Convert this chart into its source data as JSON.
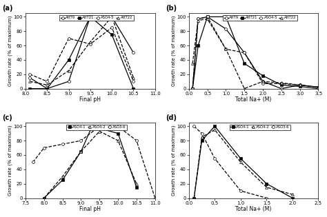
{
  "panel_a": {
    "label": "(a)",
    "xlabel": "Final pH",
    "ylabel": "Growth rate (% of maximum)",
    "xlim": [
      8,
      11
    ],
    "xticks": [
      8,
      8.5,
      9,
      9.5,
      10,
      10.5,
      11
    ],
    "ylim": [
      0,
      105
    ],
    "series": [
      {
        "name": "AHT9",
        "marker": "o",
        "mfc": "white",
        "linestyle": "-",
        "x": [
          8.1,
          8.5,
          9.0,
          9.5,
          10.0,
          10.5
        ],
        "y": [
          15,
          0,
          10,
          100,
          100,
          50
        ]
      },
      {
        "name": "AHT21",
        "marker": "s",
        "mfc": "black",
        "linestyle": "-",
        "x": [
          8.1,
          8.5,
          9.0,
          9.5,
          10.0,
          10.5
        ],
        "y": [
          0,
          0,
          40,
          100,
          75,
          0
        ]
      },
      {
        "name": "ASO4-5",
        "marker": "o",
        "mfc": "white",
        "linestyle": "--",
        "x": [
          8.1,
          8.5,
          9.0,
          9.5,
          10.0,
          10.5
        ],
        "y": [
          20,
          10,
          70,
          62,
          85,
          10
        ]
      },
      {
        "name": "AHT22",
        "marker": "^",
        "mfc": "white",
        "linestyle": "--",
        "x": [
          8.1,
          8.5,
          9.0,
          9.5,
          10.0,
          10.5
        ],
        "y": [
          10,
          5,
          25,
          65,
          100,
          15
        ]
      }
    ]
  },
  "panel_b": {
    "label": "(b)",
    "xlabel": "Total Na+ (M)",
    "ylabel": "Growth rate (% of maximum)",
    "xlim": [
      0,
      3.5
    ],
    "xticks": [
      0,
      0.5,
      1,
      1.5,
      2,
      2.5,
      3,
      3.5
    ],
    "ylim": [
      0,
      105
    ],
    "series": [
      {
        "name": "AHT9",
        "marker": "o",
        "mfc": "white",
        "linestyle": "-",
        "x": [
          0.1,
          0.25,
          0.5,
          1.0,
          1.5,
          2.0,
          2.5,
          3.0,
          3.5
        ],
        "y": [
          0,
          97,
          100,
          83,
          50,
          10,
          0,
          5,
          2
        ]
      },
      {
        "name": "AHT21",
        "marker": "s",
        "mfc": "black",
        "linestyle": "-",
        "x": [
          0.1,
          0.25,
          0.5,
          1.0,
          1.5,
          2.0,
          2.5,
          3.0,
          3.5
        ],
        "y": [
          0,
          60,
          100,
          100,
          35,
          18,
          5,
          3,
          0
        ]
      },
      {
        "name": "ASO4-5",
        "marker": "o",
        "mfc": "white",
        "linestyle": "--",
        "x": [
          0.1,
          0.25,
          0.5,
          1.0,
          1.5,
          2.0,
          2.5,
          3.0,
          3.5
        ],
        "y": [
          0,
          97,
          100,
          55,
          50,
          7,
          7,
          5,
          2
        ]
      },
      {
        "name": "AHT22",
        "marker": "^",
        "mfc": "white",
        "linestyle": "--",
        "x": [
          0.1,
          0.25,
          0.5,
          1.0,
          1.5,
          2.0,
          2.5,
          3.0,
          3.5
        ],
        "y": [
          35,
          95,
          97,
          55,
          0,
          10,
          8,
          5,
          2
        ]
      }
    ]
  },
  "panel_c": {
    "label": "(c)",
    "xlabel": "Final pH",
    "ylabel": "Growth rate (% of maximum)",
    "xlim": [
      7.5,
      11
    ],
    "xticks": [
      7.5,
      8,
      8.5,
      9,
      9.5,
      10,
      10.5,
      11
    ],
    "ylim": [
      0,
      105
    ],
    "series": [
      {
        "name": "ASO4-1",
        "marker": "s",
        "mfc": "black",
        "linestyle": "-",
        "x": [
          8.0,
          8.5,
          9.0,
          9.3,
          10.0,
          10.5
        ],
        "y": [
          0,
          25,
          65,
          100,
          90,
          15
        ]
      },
      {
        "name": "ASO4-2",
        "marker": "^",
        "mfc": "white",
        "linestyle": "--",
        "x": [
          8.0,
          8.5,
          9.0,
          9.5,
          10.0,
          10.5
        ],
        "y": [
          0,
          30,
          65,
          93,
          80,
          20
        ]
      },
      {
        "name": "ASO3-6",
        "marker": "o",
        "mfc": "white",
        "linestyle": "--",
        "x": [
          7.7,
          8.0,
          8.5,
          9.0,
          9.5,
          10.0,
          10.5,
          11.0
        ],
        "y": [
          50,
          70,
          75,
          80,
          100,
          100,
          80,
          0
        ]
      }
    ]
  },
  "panel_d": {
    "label": "(d)",
    "xlabel": "Total Na+ (M)",
    "ylabel": "Growth rate (% of maximum)",
    "xlim": [
      0,
      2.5
    ],
    "xticks": [
      0,
      0.5,
      1.0,
      1.5,
      2.0,
      2.5
    ],
    "ylim": [
      0,
      105
    ],
    "series": [
      {
        "name": "ASO4-1",
        "marker": "s",
        "mfc": "black",
        "linestyle": "-",
        "x": [
          0.1,
          0.25,
          0.5,
          1.0,
          1.5,
          2.0
        ],
        "y": [
          0,
          80,
          100,
          55,
          20,
          0
        ]
      },
      {
        "name": "ASO4-2",
        "marker": "^",
        "mfc": "white",
        "linestyle": "--",
        "x": [
          0.1,
          0.25,
          0.5,
          1.0,
          1.5,
          2.0
        ],
        "y": [
          0,
          85,
          95,
          50,
          15,
          5
        ]
      },
      {
        "name": "ASO3-6",
        "marker": "o",
        "mfc": "white",
        "linestyle": "--",
        "x": [
          0.1,
          0.25,
          0.5,
          1.0,
          1.5
        ],
        "y": [
          100,
          90,
          55,
          10,
          0
        ]
      }
    ]
  }
}
